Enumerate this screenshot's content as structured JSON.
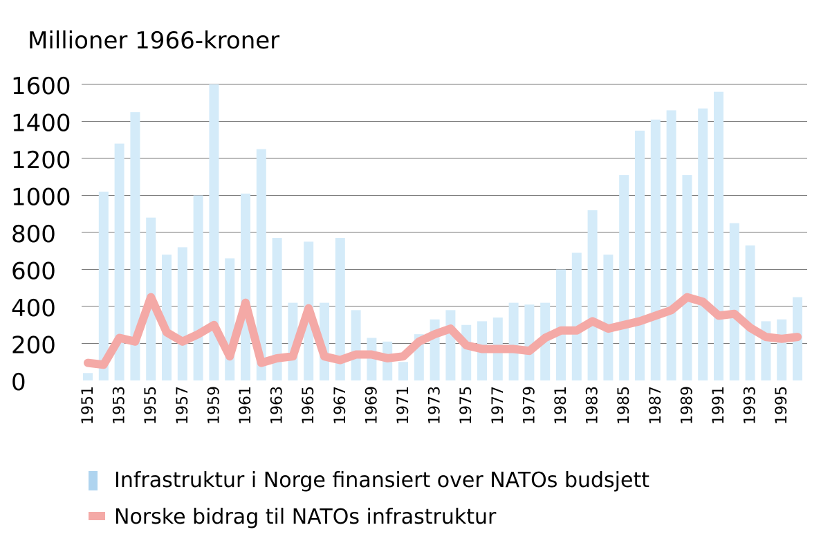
{
  "chart_data": {
    "type": "bar",
    "ylabel": "Millioner 1966-kroner",
    "ylim": [
      0,
      1600
    ],
    "yticks": [
      0,
      200,
      400,
      600,
      800,
      1000,
      1200,
      1400,
      1600
    ],
    "grid": true,
    "legend_position": "bottom-left",
    "x": [
      1951,
      1952,
      1953,
      1954,
      1955,
      1956,
      1957,
      1958,
      1959,
      1960,
      1961,
      1962,
      1963,
      1964,
      1965,
      1966,
      1967,
      1968,
      1969,
      1970,
      1971,
      1972,
      1973,
      1974,
      1975,
      1976,
      1977,
      1978,
      1979,
      1980,
      1981,
      1982,
      1983,
      1984,
      1985,
      1986,
      1987,
      1988,
      1989,
      1990,
      1991,
      1992,
      1993,
      1994,
      1995,
      1996
    ],
    "xtick_labels": [
      "1951",
      "1953",
      "1955",
      "1957",
      "1959",
      "1961",
      "1963",
      "1965",
      "1967",
      "1969",
      "1971",
      "1973",
      "1975",
      "1977",
      "1979",
      "1981",
      "1983",
      "1985",
      "1987",
      "1989",
      "1991",
      "1993",
      "1995"
    ],
    "series": [
      {
        "name": "Infrastruktur i Norge finansiert over NATOs budsjett",
        "kind": "bar",
        "color": "#d4ebf9",
        "values": [
          40,
          1020,
          1280,
          1450,
          880,
          680,
          720,
          1000,
          1600,
          660,
          1010,
          1250,
          770,
          420,
          750,
          420,
          770,
          380,
          230,
          210,
          100,
          250,
          330,
          380,
          300,
          320,
          340,
          420,
          410,
          420,
          600,
          690,
          920,
          680,
          1110,
          1350,
          1410,
          1460,
          1110,
          1470,
          1560,
          850,
          730,
          320,
          330,
          450
        ]
      },
      {
        "name": "Norske bidrag til NATOs infrastruktur",
        "kind": "line",
        "color": "#f4a9a6",
        "values": [
          95,
          85,
          230,
          210,
          450,
          260,
          210,
          250,
          300,
          130,
          420,
          95,
          120,
          130,
          390,
          130,
          110,
          140,
          140,
          120,
          130,
          210,
          250,
          280,
          190,
          170,
          170,
          170,
          160,
          230,
          270,
          270,
          320,
          280,
          300,
          320,
          350,
          380,
          450,
          425,
          350,
          360,
          285,
          235,
          225,
          235
        ]
      }
    ]
  }
}
